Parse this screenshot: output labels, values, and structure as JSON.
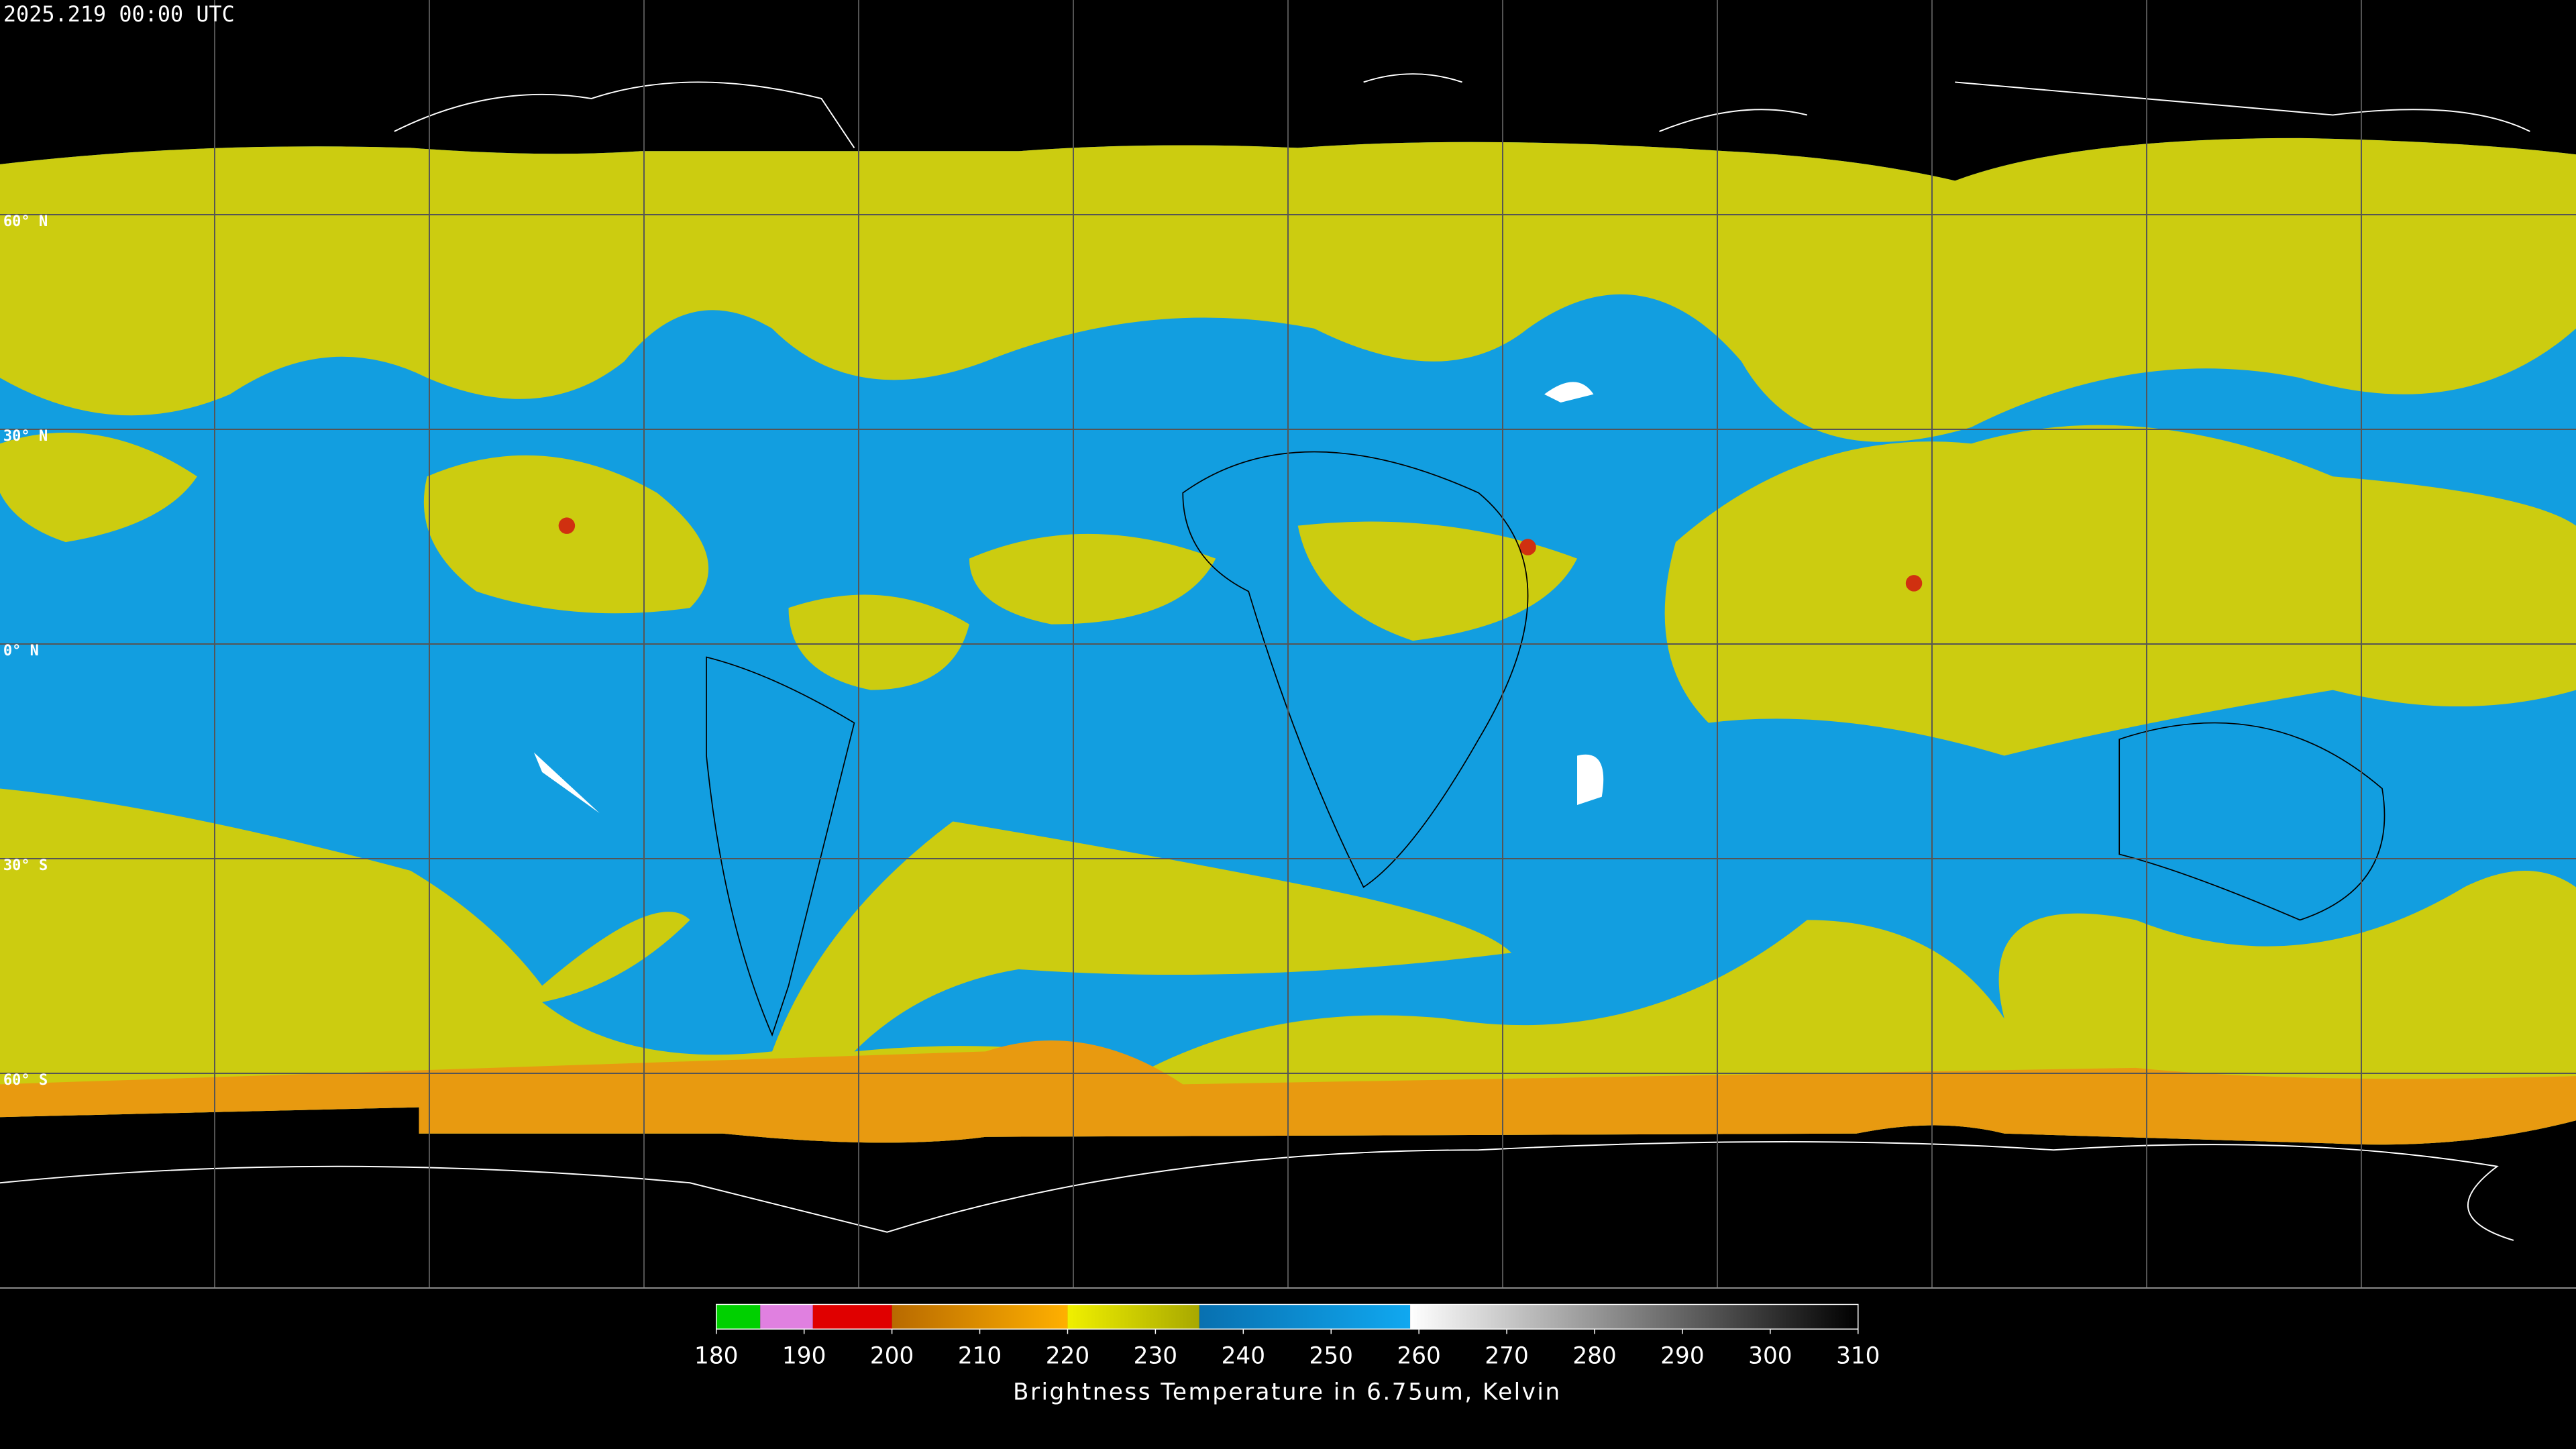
{
  "header": {
    "title": "2025.219 00:00 UTC"
  },
  "map": {
    "lat_labels": [
      "60° N",
      "30° N",
      "0° N",
      "30° S",
      "60° S"
    ]
  },
  "colorbar": {
    "range": [
      180,
      310
    ],
    "ticks": [
      180,
      190,
      200,
      210,
      220,
      230,
      240,
      250,
      260,
      270,
      280,
      290,
      300,
      310
    ],
    "segments": [
      {
        "from": 180,
        "to": 185,
        "color_start": "#00d000",
        "color_end": "#00d000"
      },
      {
        "from": 185,
        "to": 191,
        "color_start": "#e080e0",
        "color_end": "#e080e0"
      },
      {
        "from": 191,
        "to": 200,
        "color_start": "#e00000",
        "color_end": "#e00000"
      },
      {
        "from": 200,
        "to": 220,
        "color_start": "#b86a00",
        "color_end": "#ffb000"
      },
      {
        "from": 220,
        "to": 235,
        "color_start": "#f0f000",
        "color_end": "#a8a800"
      },
      {
        "from": 235,
        "to": 259,
        "color_start": "#0870b0",
        "color_end": "#10a8f0"
      },
      {
        "from": 259,
        "to": 310,
        "color_start": "#ffffff",
        "color_end": "#000000"
      }
    ],
    "label": "Brightness Temperature in 6.75um, Kelvin"
  }
}
